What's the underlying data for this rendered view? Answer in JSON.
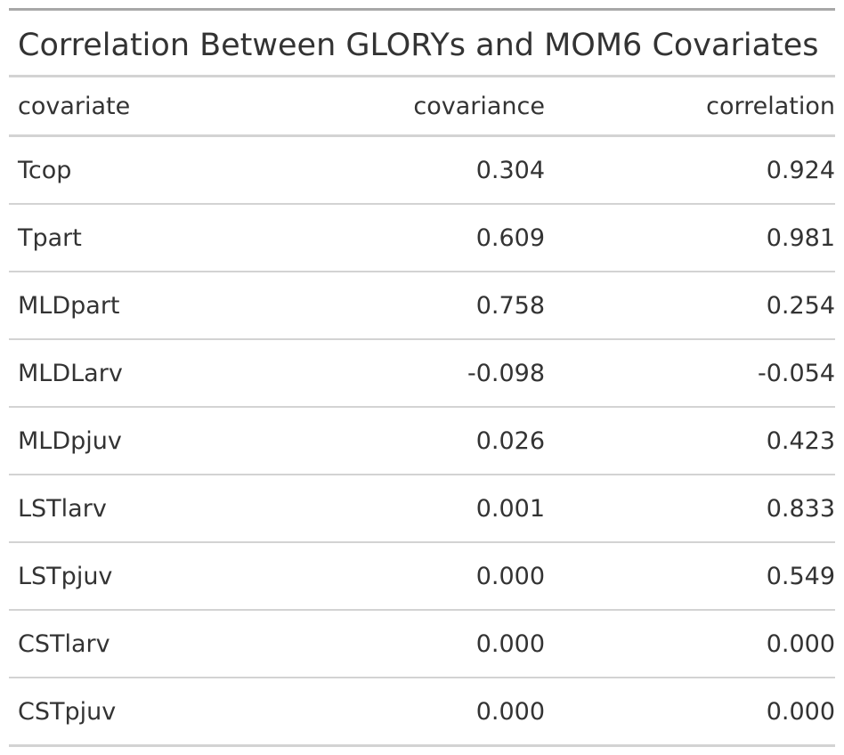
{
  "table": {
    "title": "Correlation Between GLORYs and MOM6 Covariates",
    "headers": {
      "covariate": "covariate",
      "covariance": "covariance",
      "correlation": "correlation"
    },
    "rows": [
      {
        "covariate": "Tcop",
        "covariance": "0.304",
        "correlation": "0.924"
      },
      {
        "covariate": "Tpart",
        "covariance": "0.609",
        "correlation": "0.981"
      },
      {
        "covariate": "MLDpart",
        "covariance": "0.758",
        "correlation": "0.254"
      },
      {
        "covariate": "MLDLarv",
        "covariance": "-0.098",
        "correlation": "-0.054"
      },
      {
        "covariate": "MLDpjuv",
        "covariance": "0.026",
        "correlation": "0.423"
      },
      {
        "covariate": "LSTlarv",
        "covariance": "0.001",
        "correlation": "0.833"
      },
      {
        "covariate": "LSTpjuv",
        "covariance": "0.000",
        "correlation": "0.549"
      },
      {
        "covariate": "CSTlarv",
        "covariance": "0.000",
        "correlation": "0.000"
      },
      {
        "covariate": "CSTpjuv",
        "covariance": "0.000",
        "correlation": "0.000"
      }
    ]
  }
}
